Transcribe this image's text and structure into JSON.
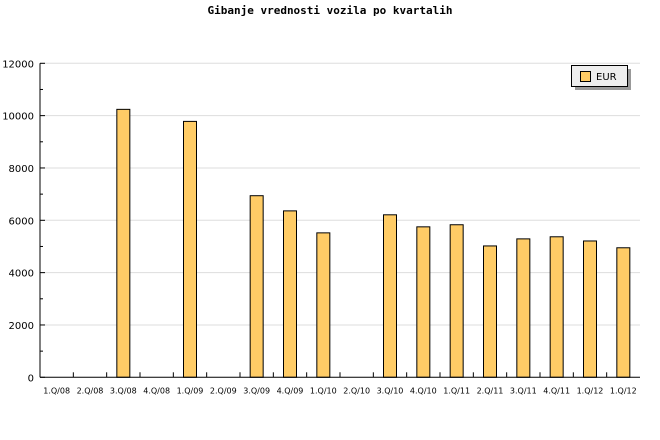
{
  "chart_data": {
    "type": "bar",
    "title": "Gibanje vrednosti vozila po kvartalih",
    "xlabel": "",
    "ylabel": "",
    "ylim": [
      0,
      12000
    ],
    "yticks": [
      0,
      2000,
      4000,
      6000,
      8000,
      10000,
      12000
    ],
    "grid": true,
    "legend_placement": "top-right",
    "categories": [
      "1.Q/08",
      "2.Q/08",
      "3.Q/08",
      "4.Q/08",
      "1.Q/09",
      "2.Q/09",
      "3.Q/09",
      "4.Q/09",
      "1.Q/10",
      "2.Q/10",
      "3.Q/10",
      "4.Q/10",
      "1.Q/11",
      "2.Q/11",
      "3.Q/11",
      "4.Q/11",
      "1.Q/12",
      "1.Q/12"
    ],
    "series": [
      {
        "name": "EUR",
        "color": "#ffcc66",
        "values": [
          null,
          null,
          10240,
          null,
          9780,
          null,
          6940,
          6360,
          5520,
          null,
          6210,
          5750,
          5830,
          5020,
          5290,
          5370,
          5210,
          4950
        ]
      }
    ]
  }
}
